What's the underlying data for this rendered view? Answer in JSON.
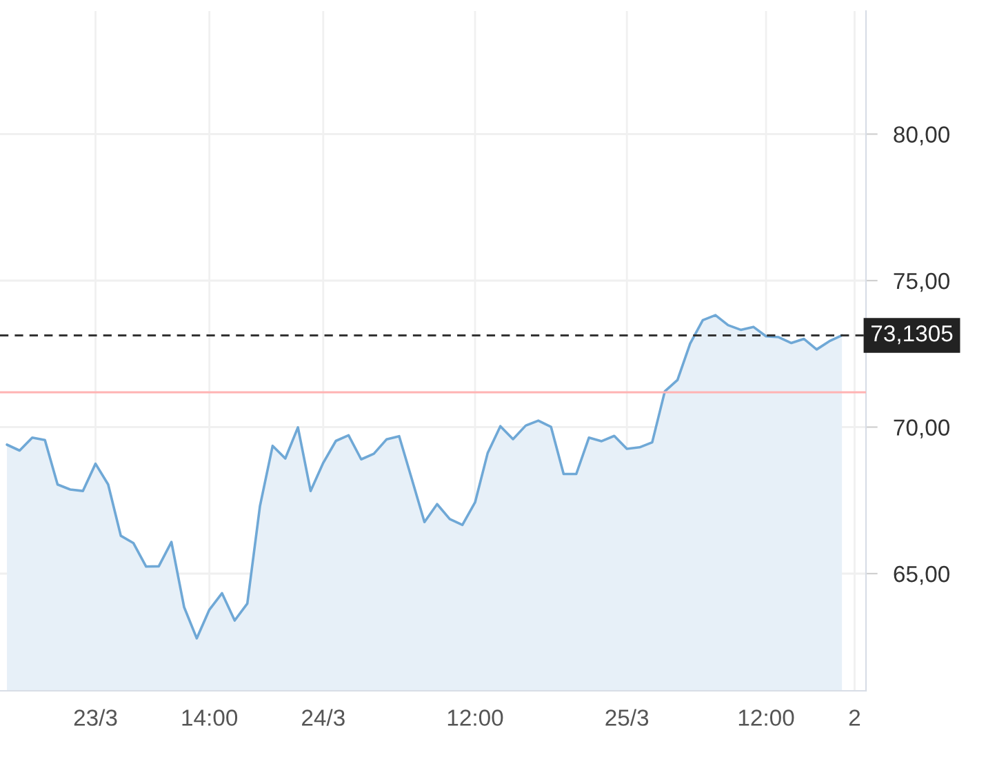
{
  "chart_data": {
    "type": "area",
    "categories": [
      null,
      null,
      null,
      null,
      null,
      null,
      null,
      "23/3",
      null,
      null,
      null,
      null,
      null,
      null,
      null,
      null,
      "14:00",
      null,
      null,
      null,
      null,
      null,
      null,
      null,
      null,
      "24/3",
      null,
      null,
      null,
      null,
      null,
      null,
      null,
      null,
      null,
      null,
      null,
      "12:00",
      null,
      null,
      null,
      null,
      null,
      null,
      null,
      null,
      null,
      null,
      null,
      "25/3",
      null,
      null,
      null,
      null,
      null,
      null,
      null,
      null,
      null,
      null,
      "12:00",
      null,
      null,
      null,
      null,
      null,
      null,
      "2"
    ],
    "series": [
      {
        "color": "#6fa8d6",
        "values": [
          69.4,
          69.2,
          69.64,
          69.56,
          68.04,
          67.87,
          67.82,
          68.75,
          68.04,
          66.29,
          66.04,
          65.24,
          65.25,
          66.08,
          63.86,
          62.79,
          63.77,
          64.33,
          63.4,
          63.98,
          67.31,
          69.36,
          68.93,
          69.99,
          67.82,
          68.78,
          69.53,
          69.72,
          68.9,
          69.09,
          69.58,
          69.69,
          68.23,
          66.76,
          67.37,
          66.86,
          66.66,
          67.43,
          69.12,
          70.03,
          69.59,
          70.05,
          70.22,
          70.01,
          68.4,
          68.4,
          69.64,
          69.52,
          69.7,
          69.26,
          69.31,
          69.48,
          71.22,
          71.61,
          72.85,
          73.65,
          73.82,
          73.48,
          73.32,
          73.42,
          73.1,
          73.07,
          72.87,
          73.01,
          72.65,
          72.93,
          73.13,
          null
        ]
      }
    ],
    "ylim": [
      61.0,
      84.2
    ],
    "yticks": [
      {
        "value": 65,
        "label": "65,00"
      },
      {
        "value": 70,
        "label": "70,00"
      },
      {
        "value": 75,
        "label": "75,00"
      },
      {
        "value": 80,
        "label": "80,00"
      }
    ],
    "ref_lines": [
      {
        "axis": "y",
        "value": 73.1305,
        "label": "73,1305",
        "color": "#333333",
        "line_style": "dashed"
      },
      {
        "axis": "y",
        "value": 71.19,
        "color": "#ffb3b3",
        "line_style": "solid"
      }
    ],
    "grid": true
  }
}
